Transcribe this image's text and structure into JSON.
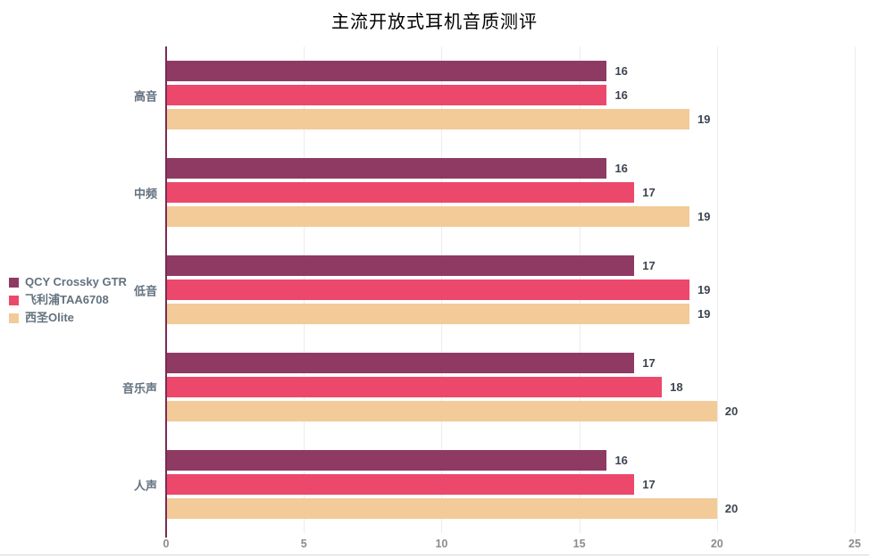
{
  "chart_data": {
    "type": "bar",
    "orientation": "horizontal",
    "title": "主流开放式耳机音质测评",
    "categories": [
      "高音",
      "中频",
      "低音",
      "音乐声",
      "人声"
    ],
    "series": [
      {
        "name": "QCY Crossky GTR",
        "color": "#8e3a63",
        "values": [
          16,
          16,
          17,
          17,
          16
        ]
      },
      {
        "name": "飞利浦TAA6708",
        "color": "#ec486c",
        "values": [
          16,
          17,
          19,
          18,
          17
        ]
      },
      {
        "name": "西圣Olite",
        "color": "#f2cb99",
        "values": [
          19,
          19,
          19,
          20,
          20
        ]
      }
    ],
    "xlim": [
      0,
      25
    ],
    "x_ticks": [
      "0",
      "5",
      "10",
      "15",
      "20",
      "25"
    ],
    "value_labels": true,
    "grid": "vertical",
    "legend_position": "middle-left",
    "axis_color": "#7a2b50"
  }
}
